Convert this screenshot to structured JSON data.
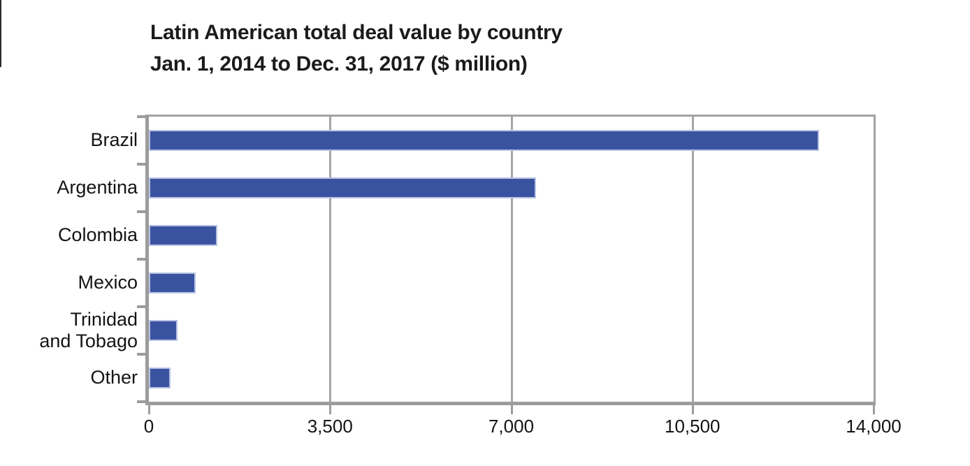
{
  "header": {
    "title_line1": "Latin American total deal value by country",
    "title_line2": "Jan. 1, 2014 to Dec. 31, 2017 ($ million)"
  },
  "chart_data": {
    "type": "bar",
    "orientation": "horizontal",
    "title": "Latin American total deal value by country",
    "subtitle": "Jan. 1, 2014 to Dec. 31, 2017 ($ million)",
    "unit": "$ million",
    "categories": [
      "Brazil",
      "Argentina",
      "Colombia",
      "Mexico",
      "Trinidad and Tobago",
      "Other"
    ],
    "category_label_lines": [
      [
        "Brazil"
      ],
      [
        "Argentina"
      ],
      [
        "Colombia"
      ],
      [
        "Mexico"
      ],
      [
        "Trinidad",
        "and Tobago"
      ],
      [
        "Other"
      ]
    ],
    "values": [
      12950,
      7480,
      1320,
      900,
      550,
      420
    ],
    "xlim": [
      0,
      14000
    ],
    "x_ticks": [
      {
        "value": 0,
        "label": "0"
      },
      {
        "value": 3500,
        "label": "3,500"
      },
      {
        "value": 7000,
        "label": "7,000"
      },
      {
        "value": 10500,
        "label": "10,500"
      },
      {
        "value": 14000,
        "label": "14,000"
      }
    ],
    "grid": "vertical gridlines at x ticks",
    "legend_position": "none",
    "colors": {
      "bar_fill": "#3A53A1",
      "bar_border": "#B7C2E2",
      "axis": "#9C9C9C",
      "gridline": "#A6A6A6",
      "text": "#1A1A1A",
      "background": "#FFFFFF"
    }
  }
}
